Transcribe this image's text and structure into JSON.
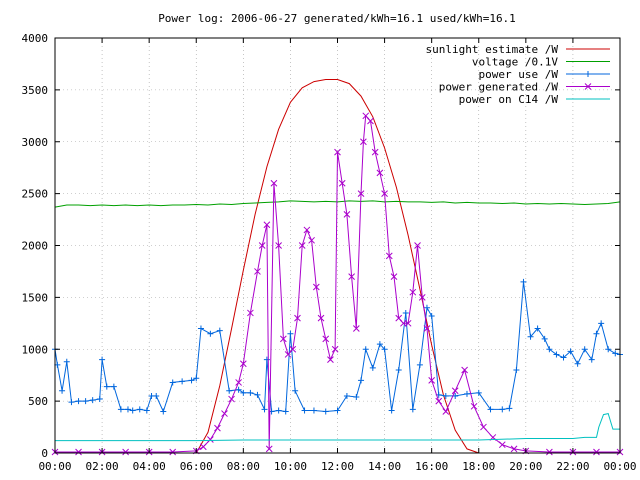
{
  "chart_data": {
    "type": "line",
    "title": "Power log: 2006-06-27 generated/kWh=16.1 used/kWh=16.1",
    "xlabel": "",
    "ylabel": "",
    "xlim": [
      "00:00",
      "24:00"
    ],
    "ylim": [
      0,
      4000
    ],
    "grid": true,
    "legend_position": "top-right",
    "x_ticks": [
      "00:00",
      "02:00",
      "04:00",
      "06:00",
      "08:00",
      "10:00",
      "12:00",
      "14:00",
      "16:00",
      "18:00",
      "20:00",
      "22:00",
      "00:00"
    ],
    "y_ticks": [
      "0",
      "500",
      "1000",
      "1500",
      "2000",
      "2500",
      "3000",
      "3500",
      "4000"
    ],
    "series": [
      {
        "name": "sunlight estimate /W",
        "color": "#cc0000",
        "style": "line",
        "x": [
          6.0,
          6.5,
          7.0,
          7.5,
          8.0,
          8.5,
          9.0,
          9.5,
          10.0,
          10.5,
          11.0,
          11.5,
          12.0,
          12.5,
          13.0,
          13.5,
          14.0,
          14.5,
          15.0,
          15.5,
          16.0,
          16.5,
          17.0,
          17.5,
          18.0
        ],
        "y": [
          0,
          200,
          650,
          1200,
          1760,
          2300,
          2760,
          3120,
          3380,
          3520,
          3580,
          3600,
          3600,
          3560,
          3440,
          3240,
          2940,
          2560,
          2100,
          1580,
          1040,
          560,
          220,
          40,
          0
        ]
      },
      {
        "name": "voltage /0.1V",
        "color": "#00a000",
        "style": "line",
        "x": [
          0,
          0.5,
          1,
          1.5,
          2,
          2.5,
          3,
          3.5,
          4,
          4.5,
          5,
          5.5,
          6,
          6.5,
          7,
          7.5,
          8,
          8.5,
          9,
          9.5,
          10,
          10.5,
          11,
          11.5,
          12,
          12.5,
          13,
          13.5,
          14,
          14.5,
          15,
          15.5,
          16,
          16.5,
          17,
          17.5,
          18,
          18.5,
          19,
          19.5,
          20,
          20.5,
          21,
          21.5,
          22,
          22.5,
          23,
          23.5,
          24
        ],
        "y": [
          2370,
          2390,
          2390,
          2385,
          2390,
          2385,
          2390,
          2385,
          2390,
          2385,
          2390,
          2390,
          2395,
          2390,
          2400,
          2395,
          2405,
          2410,
          2415,
          2420,
          2430,
          2425,
          2420,
          2425,
          2420,
          2430,
          2425,
          2430,
          2420,
          2425,
          2420,
          2420,
          2415,
          2420,
          2410,
          2415,
          2410,
          2410,
          2405,
          2410,
          2400,
          2405,
          2400,
          2405,
          2400,
          2395,
          2400,
          2405,
          2420
        ]
      },
      {
        "name": "power use /W",
        "color": "#0066dd",
        "style": "linespoints",
        "x": [
          0,
          0.1,
          0.3,
          0.5,
          0.7,
          1.0,
          1.3,
          1.6,
          1.9,
          2.0,
          2.2,
          2.5,
          2.8,
          3.1,
          3.3,
          3.6,
          3.9,
          4.1,
          4.3,
          4.6,
          5.0,
          5.4,
          5.8,
          6.0,
          6.2,
          6.6,
          7.0,
          7.4,
          7.8,
          8.0,
          8.3,
          8.6,
          8.9,
          9.0,
          9.2,
          9.5,
          9.8,
          10.0,
          10.2,
          10.6,
          11.0,
          11.5,
          12.0,
          12.4,
          12.8,
          13.0,
          13.2,
          13.5,
          13.8,
          14.0,
          14.3,
          14.6,
          14.9,
          15.2,
          15.5,
          15.8,
          16.0,
          16.3,
          16.6,
          17.0,
          17.5,
          18.0,
          18.5,
          19.0,
          19.3,
          19.6,
          19.9,
          20.2,
          20.5,
          20.8,
          21.0,
          21.3,
          21.6,
          21.9,
          22.2,
          22.5,
          22.8,
          23.0,
          23.2,
          23.5,
          23.8,
          24.0
        ],
        "y": [
          1000,
          850,
          600,
          880,
          490,
          500,
          500,
          510,
          520,
          900,
          640,
          640,
          420,
          420,
          410,
          420,
          410,
          550,
          550,
          400,
          680,
          690,
          700,
          720,
          1200,
          1150,
          1180,
          600,
          610,
          580,
          580,
          560,
          420,
          900,
          400,
          410,
          400,
          1150,
          600,
          410,
          410,
          400,
          410,
          550,
          540,
          700,
          1000,
          820,
          1050,
          1000,
          410,
          800,
          1350,
          420,
          850,
          1400,
          1320,
          560,
          550,
          550,
          570,
          580,
          420,
          420,
          430,
          800,
          1650,
          1120,
          1200,
          1100,
          1000,
          950,
          920,
          980,
          860,
          1000,
          900,
          1150,
          1250,
          1000,
          960,
          950
        ]
      },
      {
        "name": "power generated /W",
        "color": "#aa00cc",
        "style": "linespoints",
        "x": [
          0,
          1,
          2,
          3,
          4,
          5,
          6.0,
          6.3,
          6.6,
          6.9,
          7.2,
          7.5,
          7.8,
          8.0,
          8.3,
          8.6,
          8.8,
          9.0,
          9.1,
          9.3,
          9.5,
          9.7,
          9.9,
          10.1,
          10.3,
          10.5,
          10.7,
          10.9,
          11.1,
          11.3,
          11.5,
          11.7,
          11.9,
          12.0,
          12.2,
          12.4,
          12.6,
          12.8,
          13.0,
          13.1,
          13.2,
          13.4,
          13.6,
          13.8,
          14.0,
          14.2,
          14.4,
          14.6,
          14.8,
          15.0,
          15.2,
          15.4,
          15.6,
          15.8,
          16.0,
          16.3,
          16.6,
          17.0,
          17.4,
          17.8,
          18.2,
          18.6,
          19.0,
          19.5,
          20.0,
          21.0,
          22.0,
          23.0,
          24.0
        ],
        "y": [
          10,
          10,
          10,
          10,
          10,
          10,
          20,
          60,
          130,
          240,
          380,
          520,
          680,
          860,
          1350,
          1750,
          2000,
          2200,
          40,
          2600,
          2000,
          1100,
          950,
          1000,
          1300,
          2000,
          2150,
          2050,
          1600,
          1300,
          1100,
          900,
          1000,
          2900,
          2600,
          2300,
          1700,
          1200,
          2500,
          3000,
          3250,
          3200,
          2900,
          2700,
          2500,
          1900,
          1700,
          1300,
          1250,
          1250,
          1550,
          2000,
          1500,
          1200,
          700,
          500,
          400,
          600,
          800,
          450,
          250,
          150,
          80,
          40,
          20,
          10,
          10,
          10,
          10
        ]
      },
      {
        "name": "power on C14 /W",
        "color": "#00c0c0",
        "style": "line",
        "x": [
          0,
          2,
          4,
          6,
          8,
          10,
          12,
          14,
          16,
          18,
          20,
          21,
          22,
          22.5,
          22.8,
          23.0,
          23.1,
          23.3,
          23.5,
          23.7,
          24.0
        ],
        "y": [
          120,
          120,
          120,
          120,
          125,
          125,
          125,
          125,
          125,
          125,
          140,
          140,
          140,
          150,
          150,
          150,
          250,
          370,
          380,
          230,
          230
        ]
      }
    ]
  }
}
